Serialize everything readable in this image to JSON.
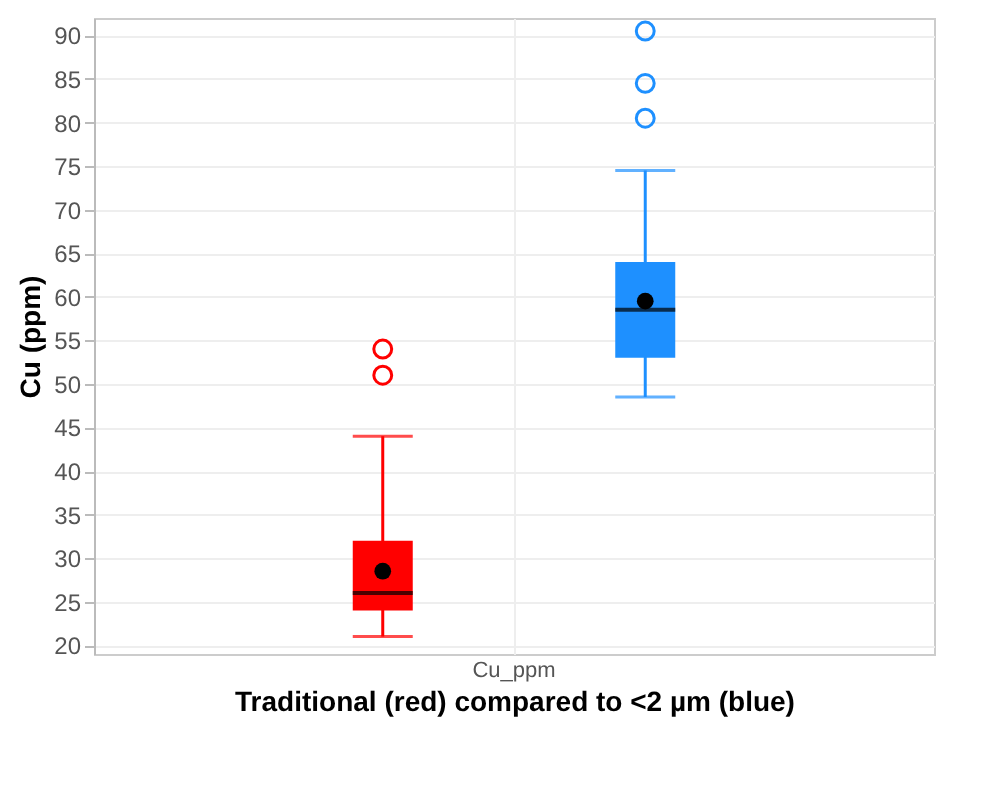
{
  "chart_data": {
    "type": "box",
    "xlabel": "Traditional (red) compared to <2 µm (blue)",
    "ylabel": "Cu (ppm)",
    "categories": [
      "Cu_ppm"
    ],
    "series": [
      {
        "color": "#ff0000",
        "boxes": [
          {
            "low": 21,
            "q1": 24,
            "median": 26,
            "q3": 32,
            "high": 44,
            "mean": 28.5,
            "outliers": [
              51,
              54
            ]
          }
        ]
      },
      {
        "color": "#1e90ff",
        "boxes": [
          {
            "low": 48.5,
            "q1": 53,
            "median": 58.5,
            "q3": 64,
            "high": 74.5,
            "mean": 59.5,
            "outliers": [
              80.5,
              84.5,
              90.5
            ]
          }
        ]
      }
    ],
    "ylim": [
      19,
      92
    ],
    "yticks": [
      20,
      25,
      30,
      35,
      40,
      45,
      50,
      55,
      60,
      65,
      70,
      75,
      80,
      85,
      90
    ],
    "grid": true
  }
}
